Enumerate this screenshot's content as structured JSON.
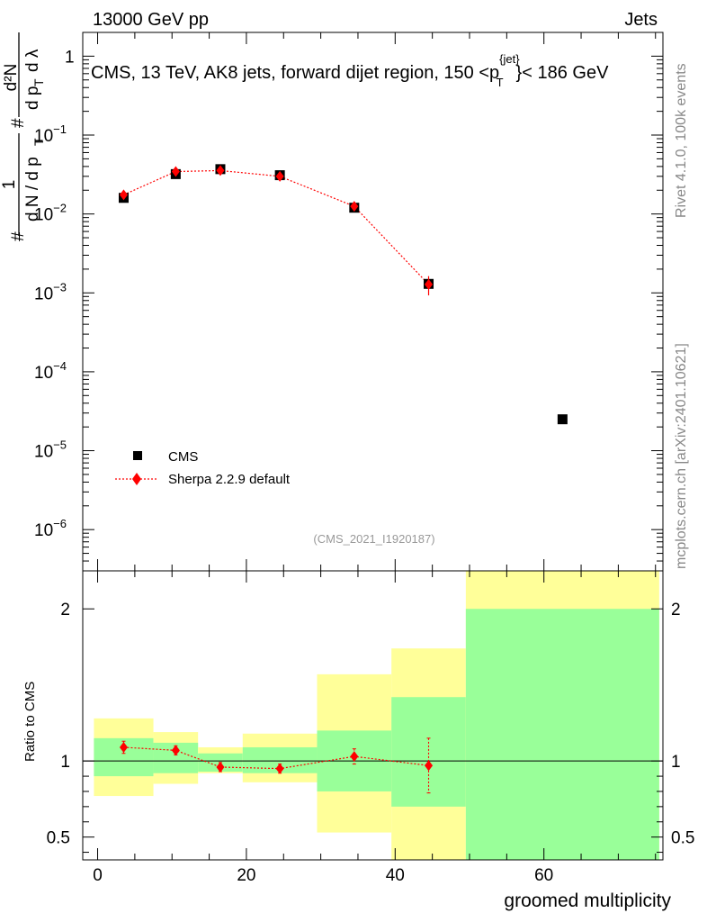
{
  "header": {
    "left": "13000 GeV pp",
    "right": "Jets"
  },
  "side_text": {
    "rivet": "Rivet 4.1.0,  100k events",
    "mcplots": "mcplots.cern.ch [arXiv:2401.10621]"
  },
  "chart_data": {
    "type": "scatter",
    "title": "CMS, 13 TeV, AK8 jets, forward dijet region, 150 <p_T^{jet}< 186 GeV",
    "title_parts": {
      "prefix": "CMS, 13 TeV, AK8 jets, forward dijet region, 150 <p",
      "sup": "{jet}",
      "sub": "T",
      "suffix": "}< 186 GeV"
    },
    "watermark": "(CMS_2021_I1920187)",
    "xlabel": "groomed multiplicity",
    "ylabel_parts": {
      "frac1_num": "1",
      "frac1_den": "d N / d p",
      "frac1_den_sub": "T",
      "hash": "#",
      "frac2_num": "d²N",
      "frac2_den": "d p",
      "frac2_den_sub": "T",
      "frac2_den_tail": "d λ"
    },
    "xlim": [
      -2,
      76
    ],
    "ylim_main": [
      3e-07,
      2.0
    ],
    "y_scale_main": "log",
    "ylim_ratio": [
      0.35,
      2.25
    ],
    "ratio_ylabel": "Ratio to CMS",
    "x_ticks": [
      0,
      20,
      40,
      60
    ],
    "main_tick_labels": [
      {
        "value": 1,
        "base": "1",
        "exp": ""
      },
      {
        "value": 0.1,
        "base": "10",
        "exp": "−1"
      },
      {
        "value": 0.01,
        "base": "10",
        "exp": "−2"
      },
      {
        "value": 0.001,
        "base": "10",
        "exp": "−3"
      },
      {
        "value": 0.0001,
        "base": "10",
        "exp": "−4"
      },
      {
        "value": 1e-05,
        "base": "10",
        "exp": "−5"
      },
      {
        "value": 1e-06,
        "base": "10",
        "exp": "−6"
      }
    ],
    "ratio_ticks": [
      {
        "value": 2,
        "label": "2"
      },
      {
        "value": 1,
        "label": "1"
      },
      {
        "value": 0.5,
        "label": "0.5"
      }
    ],
    "legend": [
      {
        "name": "CMS",
        "marker": "square",
        "color": "#000000"
      },
      {
        "name": "Sherpa 2.2.9 default",
        "marker": "diamond",
        "color": "#ff0000"
      }
    ],
    "series": [
      {
        "name": "CMS",
        "x": [
          3.5,
          10.5,
          16.5,
          24.5,
          34.5,
          44.5,
          62.5
        ],
        "y": [
          0.016,
          0.032,
          0.037,
          0.031,
          0.012,
          0.0013,
          2.5e-05
        ]
      },
      {
        "name": "Sherpa 2.2.9 default",
        "x": [
          3.5,
          10.5,
          16.5,
          24.5,
          34.5,
          44.5
        ],
        "y": [
          0.0175,
          0.0345,
          0.0355,
          0.03,
          0.0125,
          0.00128
        ],
        "yerr_low": [
          0.0017,
          0.002,
          0.0015,
          0.0016,
          0.0008,
          0.00035
        ],
        "yerr_high": [
          0.0017,
          0.002,
          0.0015,
          0.0016,
          0.0008,
          0.00035
        ]
      }
    ],
    "ratio": {
      "x": [
        3.5,
        10.5,
        16.5,
        24.5,
        34.5,
        44.5
      ],
      "y": [
        1.09,
        1.07,
        0.96,
        0.95,
        1.03,
        0.97
      ],
      "err": [
        0.04,
        0.03,
        0.03,
        0.03,
        0.05,
        0.18
      ]
    },
    "bands": [
      {
        "xlo": -0.5,
        "xhi": 7.5,
        "inner_lo": 0.9,
        "inner_hi": 1.15,
        "outer_lo": 0.77,
        "outer_hi": 1.28
      },
      {
        "xlo": 7.5,
        "xhi": 13.5,
        "inner_lo": 0.92,
        "inner_hi": 1.12,
        "outer_lo": 0.85,
        "outer_hi": 1.19
      },
      {
        "xlo": 13.5,
        "xhi": 19.5,
        "inner_lo": 0.93,
        "inner_hi": 1.05,
        "outer_lo": 0.92,
        "outer_hi": 1.09
      },
      {
        "xlo": 19.5,
        "xhi": 29.5,
        "inner_lo": 0.92,
        "inner_hi": 1.09,
        "outer_lo": 0.86,
        "outer_hi": 1.18
      },
      {
        "xlo": 29.5,
        "xhi": 39.5,
        "inner_lo": 0.8,
        "inner_hi": 1.2,
        "outer_lo": 0.53,
        "outer_hi": 1.57
      },
      {
        "xlo": 39.5,
        "xhi": 49.5,
        "inner_lo": 0.7,
        "inner_hi": 1.42,
        "outer_lo": 0.35,
        "outer_hi": 1.74
      },
      {
        "xlo": 49.5,
        "xhi": 75.5,
        "inner_lo": 0.35,
        "inner_hi": 2.0,
        "outer_lo": 0.35,
        "outer_hi": 2.25
      }
    ],
    "colors": {
      "data": "#000000",
      "mc": "#ff0000",
      "band_outer": "#ffff99",
      "band_inner": "#99ff99",
      "watermark": "#999999"
    }
  }
}
